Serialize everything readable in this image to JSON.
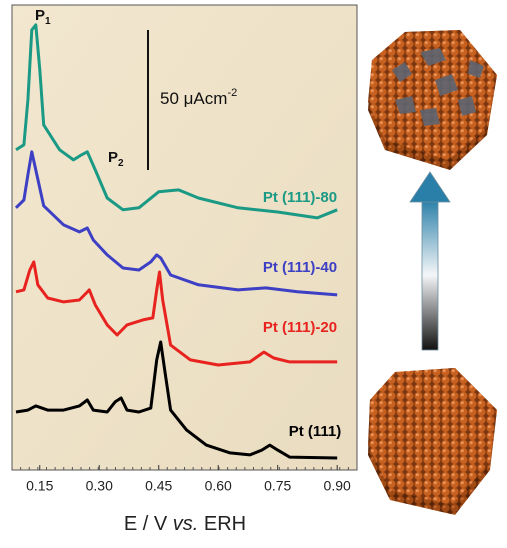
{
  "chart_data": {
    "type": "line",
    "x_label": [
      "E / V ",
      "vs.",
      " ERH"
    ],
    "xlim": [
      0.08,
      0.95
    ],
    "xticks": [
      0.15,
      {
        "value": 0.3,
        "label": "0.30"
      },
      0.45,
      {
        "value": 0.6,
        "label": "0.60"
      },
      0.75,
      {
        "value": 0.9,
        "label": "0.90"
      }
    ],
    "ylim": [
      0,
      166
    ],
    "scale_bar": {
      "value": 50,
      "label": "50 μAcm",
      "label_sup": "-2"
    },
    "annotations": [
      {
        "text": "P",
        "sub": "1"
      },
      {
        "text": "P",
        "sub": "2"
      }
    ],
    "series": [
      {
        "name": "Pt (111)-80",
        "color": "#1a9a85",
        "x": [
          0.09,
          0.11,
          0.12,
          0.13,
          0.14,
          0.15,
          0.16,
          0.2,
          0.235,
          0.255,
          0.27,
          0.29,
          0.32,
          0.36,
          0.4,
          0.45,
          0.5,
          0.55,
          0.65,
          0.75,
          0.85,
          0.9
        ],
        "values": [
          114.3,
          116.1,
          132.1,
          157.1,
          158.9,
          142.9,
          123.2,
          114.3,
          110.7,
          112.5,
          113.6,
          107.1,
          97.1,
          92.9,
          93.6,
          99.3,
          100.0,
          97.1,
          93.6,
          92.1,
          90.0,
          92.9
        ]
      },
      {
        "name": "Pt (111)-40",
        "color": "#3d3fc4",
        "x": [
          0.09,
          0.11,
          0.12,
          0.13,
          0.14,
          0.16,
          0.21,
          0.25,
          0.27,
          0.285,
          0.32,
          0.36,
          0.4,
          0.43,
          0.445,
          0.455,
          0.48,
          0.55,
          0.65,
          0.72,
          0.8,
          0.9
        ],
        "values": [
          93.6,
          96.4,
          105.4,
          113.6,
          107.1,
          94.3,
          87.5,
          85.0,
          86.4,
          82.1,
          76.8,
          72.1,
          71.4,
          74.3,
          76.8,
          75.7,
          69.6,
          66.1,
          64.3,
          65.0,
          63.6,
          62.5
        ]
      },
      {
        "name": "Pt (111)-20",
        "color": "#e8231f",
        "x": [
          0.09,
          0.11,
          0.125,
          0.135,
          0.145,
          0.17,
          0.21,
          0.25,
          0.275,
          0.29,
          0.32,
          0.345,
          0.37,
          0.41,
          0.435,
          0.445,
          0.452,
          0.46,
          0.48,
          0.53,
          0.6,
          0.68,
          0.715,
          0.74,
          0.78,
          0.9
        ],
        "values": [
          63.6,
          64.3,
          71.4,
          74.3,
          66.1,
          61.4,
          60.0,
          60.7,
          64.3,
          58.9,
          51.8,
          48.2,
          51.8,
          53.6,
          54.3,
          64.3,
          70.7,
          60.7,
          44.6,
          39.3,
          37.5,
          38.6,
          42.1,
          40.0,
          38.6,
          38.6
        ]
      },
      {
        "name": "Pt (111)",
        "color": "#000000",
        "x": [
          0.09,
          0.12,
          0.14,
          0.17,
          0.21,
          0.25,
          0.27,
          0.285,
          0.32,
          0.34,
          0.355,
          0.37,
          0.4,
          0.43,
          0.445,
          0.455,
          0.465,
          0.48,
          0.52,
          0.57,
          0.63,
          0.68,
          0.71,
          0.73,
          0.75,
          0.78,
          0.9
        ],
        "values": [
          20.7,
          21.4,
          22.9,
          21.4,
          21.4,
          22.9,
          25.0,
          21.4,
          20.7,
          24.3,
          25.7,
          21.4,
          20.7,
          22.1,
          39.3,
          45.7,
          35.7,
          21.4,
          14.3,
          8.9,
          6.1,
          5.4,
          7.1,
          8.9,
          7.1,
          4.6,
          4.3
        ]
      }
    ]
  }
}
